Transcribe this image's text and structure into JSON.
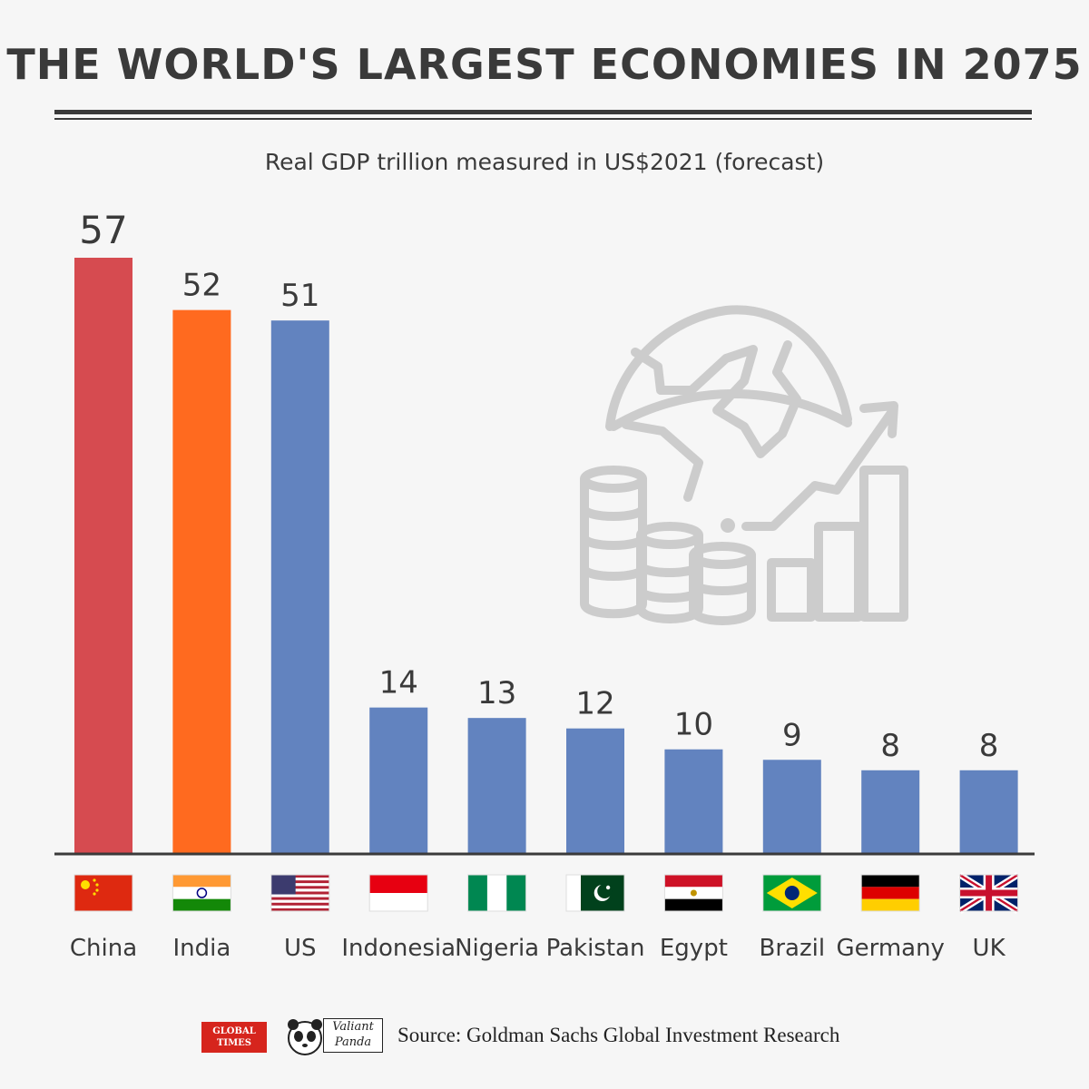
{
  "title": "THE WORLD'S LARGEST ECONOMIES IN 2075",
  "subtitle": "Real GDP trillion measured in US$2021 (forecast)",
  "chart_data": {
    "type": "bar",
    "title": "THE WORLD'S LARGEST ECONOMIES IN 2075",
    "subtitle": "Real GDP trillion measured in US$2021 (forecast)",
    "categories": [
      "China",
      "India",
      "US",
      "Indonesia",
      "Nigeria",
      "Pakistan",
      "Egypt",
      "Brazil",
      "Germany",
      "UK"
    ],
    "values": [
      57,
      52,
      51,
      14,
      13,
      12,
      10,
      9,
      8,
      8
    ],
    "colors": [
      "#d64b50",
      "#ff6a1f",
      "#6283bf",
      "#6283bf",
      "#6283bf",
      "#6283bf",
      "#6283bf",
      "#6283bf",
      "#6283bf",
      "#6283bf"
    ],
    "ylim": [
      0,
      57
    ],
    "grid": false,
    "legend": "none",
    "data_labels": true
  },
  "decoration": {
    "icon": "globe-coins-growth-icon",
    "icon_color": "#cccccc"
  },
  "footer": {
    "logo_global_times_line1": "GLOBAL",
    "logo_global_times_line2": "TIMES",
    "logo_valiant_line1": "Valiant",
    "logo_valiant_line2": "Panda",
    "source": "Source: Goldman Sachs Global Investment Research"
  }
}
